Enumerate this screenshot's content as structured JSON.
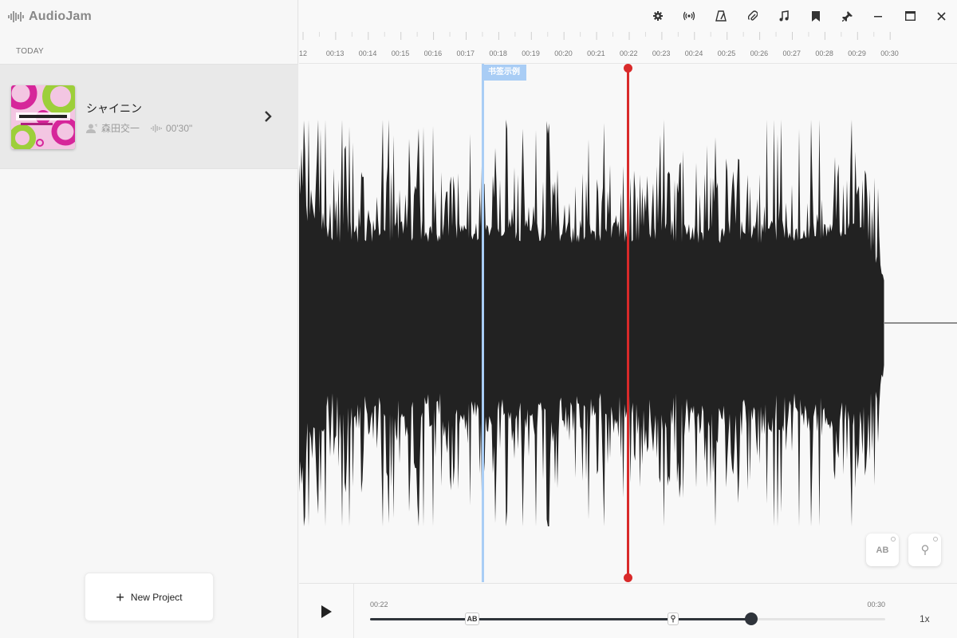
{
  "app": {
    "name": "AudioJam"
  },
  "sidebar": {
    "section_label": "TODAY",
    "project": {
      "title": "シャイニン",
      "artist": "森田交一",
      "duration": "00'30\""
    },
    "new_project_label": "New Project"
  },
  "toolbar": {
    "icons": [
      "gear-icon",
      "broadcast-icon",
      "metronome-icon",
      "paperclip-icon",
      "music-note-icon",
      "bookmark-icon",
      "pin-icon",
      "minimize-icon",
      "maximize-icon",
      "close-icon"
    ]
  },
  "ruler": {
    "labels": [
      "12",
      "00:13",
      "00:14",
      "00:15",
      "00:16",
      "00:17",
      "00:18",
      "00:19",
      "00:20",
      "00:21",
      "00:22",
      "00:23",
      "00:24",
      "00:25",
      "00:26",
      "00:27",
      "00:28",
      "00:29",
      "00:30"
    ]
  },
  "waveform": {
    "bookmark_label": "书签示例",
    "ab_label": "AB"
  },
  "transport": {
    "current_time": "00:22",
    "total_time": "00:30",
    "speed": "1x",
    "ab_marker": "AB",
    "progress": 0.74
  },
  "colors": {
    "playhead": "#d92a2a",
    "bookmark": "#a9cdf5",
    "waveform": "#222222",
    "slider": "#2f343b"
  }
}
